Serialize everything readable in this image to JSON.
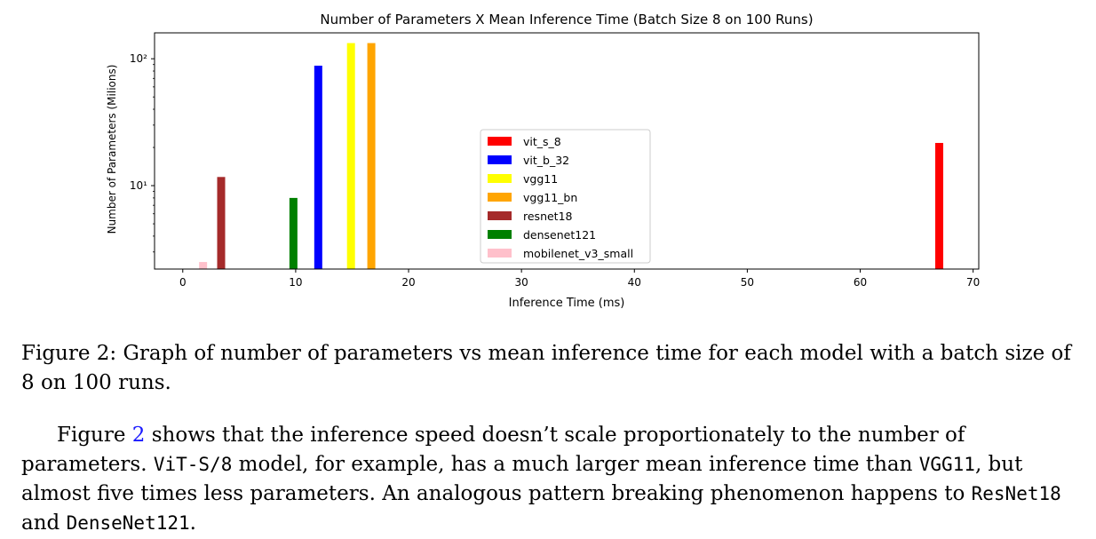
{
  "chart_data": {
    "type": "bar",
    "title": "Number of Parameters X Mean Inference Time (Batch Size 8 on 100 Runs)",
    "xlabel": "Inference Time (ms)",
    "ylabel": "Number of Parameters (Milions)",
    "xlim": [
      -2.5,
      70.5
    ],
    "ylim": [
      2.2,
      160
    ],
    "yscale": "log",
    "xticks": [
      0,
      10,
      20,
      30,
      40,
      50,
      60,
      70
    ],
    "yticks": [
      {
        "value": 10,
        "label": "10¹"
      },
      {
        "value": 100,
        "label": "10²"
      }
    ],
    "grid": false,
    "legend_position": "center",
    "series": [
      {
        "name": "vit_s_8",
        "x": 67.0,
        "value": 21.7,
        "color": "#ff0000"
      },
      {
        "name": "vit_b_32",
        "x": 12.0,
        "value": 88.2,
        "color": "#0000ff"
      },
      {
        "name": "vgg11",
        "x": 14.9,
        "value": 132.9,
        "color": "#ffff00"
      },
      {
        "name": "vgg11_bn",
        "x": 16.7,
        "value": 132.9,
        "color": "#ffa500"
      },
      {
        "name": "resnet18",
        "x": 3.4,
        "value": 11.7,
        "color": "#a52a2a"
      },
      {
        "name": "densenet121",
        "x": 9.8,
        "value": 8.0,
        "color": "#008000"
      },
      {
        "name": "mobilenet_v3_small",
        "x": 1.8,
        "value": 2.5,
        "color": "#ffc0cb"
      }
    ]
  },
  "caption": {
    "label": "Figure 2:",
    "text": "Graph of number of parameters vs mean inference time for each model with a batch size of 8 on 100 runs."
  },
  "paragraph": {
    "t1": "Figure ",
    "ref": "2",
    "t2": " shows that the inference speed doesn’t scale proportionately to the number of parameters. ",
    "code1": "ViT-S/8",
    "t3": " model, for example, has a much larger mean inference time than ",
    "code2": "VGG11",
    "t4": ", but almost five times less parameters. An analogous pattern breaking phenomenon happens to ",
    "code3": "ResNet18",
    "t5": " and ",
    "code4": "DenseNet121",
    "t6": "."
  }
}
